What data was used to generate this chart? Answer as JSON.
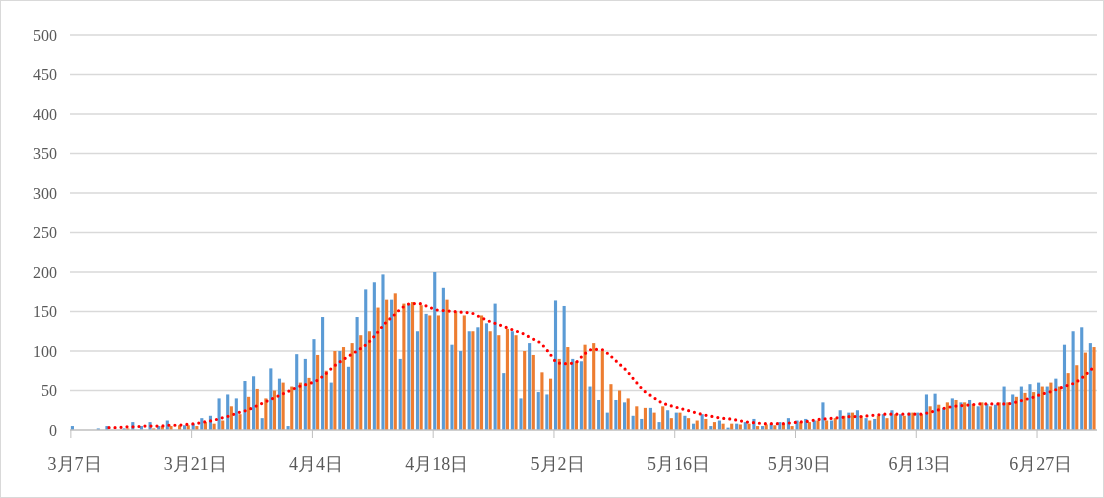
{
  "chart_data": {
    "type": "bar",
    "categories": [
      "3月7日",
      null,
      null,
      null,
      null,
      null,
      null,
      null,
      null,
      null,
      null,
      null,
      null,
      null,
      "3月21日",
      null,
      null,
      null,
      null,
      null,
      null,
      null,
      null,
      null,
      null,
      null,
      null,
      null,
      "4月4日",
      null,
      null,
      null,
      null,
      null,
      null,
      null,
      null,
      null,
      null,
      null,
      null,
      null,
      "4月18日",
      null,
      null,
      null,
      null,
      null,
      null,
      null,
      null,
      null,
      null,
      null,
      null,
      null,
      "5月2日",
      null,
      null,
      null,
      null,
      null,
      null,
      null,
      null,
      null,
      null,
      null,
      null,
      null,
      "5月16日",
      null,
      null,
      null,
      null,
      null,
      null,
      null,
      null,
      null,
      null,
      null,
      null,
      null,
      "5月30日",
      null,
      null,
      null,
      null,
      null,
      null,
      null,
      null,
      null,
      null,
      null,
      null,
      null,
      "6月13日",
      null,
      null,
      null,
      null,
      null,
      null,
      null,
      null,
      null,
      null,
      null,
      null,
      null,
      "6月27日",
      null,
      null,
      null,
      null,
      null,
      null
    ],
    "series": [
      {
        "color": "#5b9bd5",
        "values": [
          5,
          0,
          0,
          2,
          5,
          null,
          2,
          10,
          5,
          10,
          5,
          12,
          null,
          6,
          8,
          15,
          18,
          40,
          45,
          40,
          62,
          68,
          15,
          78,
          65,
          5,
          96,
          90,
          115,
          143,
          60,
          100,
          80,
          143,
          178,
          187,
          197,
          165,
          90,
          160,
          125,
          147,
          200,
          180,
          108,
          100,
          125,
          130,
          135,
          160,
          72,
          125,
          40,
          110,
          48,
          45,
          164,
          157,
          90,
          87,
          55,
          38,
          22,
          38,
          35,
          18,
          14,
          28,
          10,
          25,
          22,
          18,
          8,
          20,
          5,
          12,
          3,
          8,
          10,
          14,
          5,
          8,
          10,
          15,
          12,
          14,
          12,
          35,
          12,
          25,
          22,
          25,
          15,
          14,
          20,
          25,
          20,
          22,
          22,
          45,
          46,
          28,
          40,
          35,
          38,
          30,
          33,
          32,
          55,
          45,
          55,
          58,
          60,
          55,
          65,
          108,
          125,
          130,
          110
        ]
      },
      {
        "color": "#ed7d31",
        "values": [
          0,
          0,
          0,
          0,
          null,
          null,
          2,
          null,
          null,
          2,
          5,
          5,
          6,
          6,
          5,
          10,
          8,
          12,
          30,
          20,
          42,
          52,
          40,
          50,
          60,
          55,
          60,
          66,
          95,
          75,
          100,
          105,
          110,
          120,
          125,
          155,
          165,
          173,
          160,
          162,
          158,
          145,
          145,
          165,
          150,
          145,
          125,
          145,
          125,
          120,
          128,
          120,
          100,
          95,
          73,
          65,
          90,
          105,
          87,
          108,
          110,
          100,
          58,
          50,
          40,
          30,
          28,
          22,
          30,
          15,
          22,
          15,
          12,
          14,
          10,
          8,
          8,
          7,
          8,
          5,
          7,
          6,
          8,
          5,
          10,
          10,
          12,
          12,
          15,
          18,
          22,
          18,
          12,
          18,
          15,
          20,
          18,
          22,
          20,
          30,
          32,
          35,
          38,
          35,
          33,
          35,
          30,
          35,
          35,
          42,
          47,
          48,
          55,
          60,
          55,
          72,
          82,
          98,
          105
        ]
      },
      {
        "type": "line",
        "color": "#ff0000",
        "line_style": "dotted",
        "values": [
          null,
          null,
          null,
          null,
          3,
          3,
          4,
          4,
          5,
          5,
          5,
          6,
          6,
          7,
          8,
          10,
          12,
          15,
          18,
          22,
          25,
          30,
          35,
          40,
          45,
          50,
          55,
          58,
          62,
          70,
          80,
          88,
          95,
          102,
          110,
          122,
          135,
          145,
          155,
          160,
          160,
          156,
          152,
          151,
          150,
          149,
          148,
          143,
          138,
          134,
          130,
          126,
          122,
          116,
          110,
          98,
          85,
          84,
          85,
          95,
          102,
          102,
          95,
          85,
          75,
          62,
          50,
          42,
          35,
          31,
          28,
          25,
          22,
          19,
          17,
          15,
          14,
          12,
          10,
          9,
          8,
          8,
          8,
          9,
          10,
          11,
          13,
          14,
          15,
          16,
          17,
          17,
          18,
          19,
          20,
          20,
          20,
          20,
          20,
          22,
          25,
          28,
          30,
          31,
          32,
          33,
          33,
          33,
          33,
          35,
          38,
          41,
          45,
          48,
          52,
          56,
          60,
          68,
          78
        ]
      }
    ],
    "ylim": [
      0,
      500
    ],
    "yticks": [
      0,
      50,
      100,
      150,
      200,
      250,
      300,
      350,
      400,
      450,
      500
    ],
    "grid": "y"
  }
}
